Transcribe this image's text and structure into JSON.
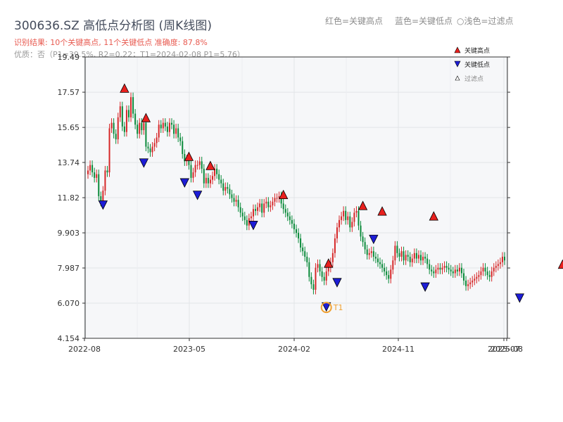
{
  "title": "300636.SZ 高低点分析图 (周K线图)",
  "legend_top": {
    "red": "红色=关键高点",
    "blue": "蓝色=关键低点",
    "light": "浅色=过滤点"
  },
  "result_line": "识别结果: 10个关键高点, 11个关键低点 准确度: 87.8%",
  "quality_line": "优质：否（P1=39.5%, R2=0.22；T1=2024-02-08 P1=5.76）",
  "colors": {
    "up": "#d62728",
    "down": "#0a8a3a",
    "high_marker": "#e8201e",
    "low_marker": "#1d1dd6",
    "t1": "#f0a030",
    "plot_bg": "#f6f7f9"
  },
  "chart_data": {
    "type": "candlestick",
    "y_ticks": [
      "4.154",
      "6.070",
      "7.987",
      "9.903",
      "11.82",
      "13.74",
      "15.65",
      "17.57",
      "19.49"
    ],
    "ylim": [
      4.154,
      19.49
    ],
    "x_ticks": [
      "2022-08",
      "2023-05",
      "2024-02",
      "2024-11",
      "2025-07",
      "2025-08"
    ],
    "close": [
      13.3,
      13.6,
      13.2,
      12.9,
      13.1,
      11.9,
      11.6,
      12.2,
      13.3,
      13.2,
      15.6,
      15.9,
      15.3,
      15.0,
      16.2,
      16.8,
      15.7,
      15.4,
      16.6,
      16.2,
      17.3,
      16.4,
      15.8,
      15.3,
      15.9,
      15.5,
      15.9,
      14.6,
      14.5,
      14.3,
      14.6,
      14.8,
      15.1,
      15.8,
      15.6,
      15.9,
      15.7,
      15.4,
      15.9,
      15.8,
      15.3,
      15.6,
      15.1,
      14.9,
      14.2,
      13.8,
      13.9,
      13.6,
      12.9,
      13.2,
      13.6,
      13.6,
      13.8,
      13.4,
      12.6,
      12.9,
      12.6,
      12.8,
      13.0,
      13.4,
      13.1,
      12.8,
      12.6,
      12.2,
      12.4,
      12.3,
      12.0,
      11.8,
      11.6,
      11.7,
      11.3,
      11.0,
      10.8,
      10.6,
      10.3,
      10.7,
      10.8,
      11.2,
      11.1,
      11.3,
      11.5,
      11.0,
      11.5,
      11.6,
      11.3,
      11.4,
      11.6,
      11.8,
      11.8,
      11.9,
      11.5,
      11.2,
      11.0,
      10.8,
      10.6,
      10.4,
      10.1,
      9.9,
      9.6,
      9.1,
      8.9,
      8.6,
      8.3,
      7.5,
      7.1,
      6.8,
      8.0,
      8.2,
      7.8,
      7.5,
      7.3,
      7.8,
      8.0,
      8.3,
      8.8,
      9.6,
      10.2,
      10.6,
      10.8,
      11.1,
      10.6,
      10.8,
      10.2,
      10.5,
      11.0,
      11.1,
      10.3,
      9.7,
      9.4,
      9.0,
      8.7,
      8.8,
      8.9,
      8.6,
      8.5,
      8.3,
      8.2,
      8.0,
      7.8,
      7.6,
      7.4,
      7.9,
      8.4,
      9.2,
      8.8,
      8.6,
      8.9,
      8.4,
      8.7,
      8.6,
      8.3,
      8.5,
      8.8,
      8.5,
      8.7,
      8.4,
      8.6,
      8.5,
      8.2,
      7.9,
      7.8,
      7.7,
      7.9,
      8.0,
      7.9,
      8.0,
      8.1,
      8.0,
      7.9,
      7.8,
      7.7,
      7.9,
      7.8,
      8.0,
      7.7,
      7.3,
      7.0,
      7.1,
      7.2,
      7.3,
      7.4,
      7.5,
      7.6,
      7.8,
      8.0,
      7.8,
      7.6,
      7.5,
      7.8,
      8.0,
      8.1,
      8.2,
      8.3,
      8.6,
      8.4
    ],
    "key_highs": [
      {
        "index": 17,
        "date": "2022-10",
        "value": 17.79
      },
      {
        "index": 27,
        "date": "2022-12",
        "value": 16.18
      },
      {
        "index": 47,
        "date": "2023-04",
        "value": 14.07
      },
      {
        "index": 57,
        "date": "2023-05",
        "value": 13.57
      },
      {
        "index": 91,
        "date": "2023-10",
        "value": 11.99
      },
      {
        "index": 112,
        "date": "2024-02",
        "value": 8.25
      },
      {
        "index": 128,
        "date": "2024-05",
        "value": 11.39
      },
      {
        "index": 137,
        "date": "2024-06",
        "value": 11.09
      },
      {
        "index": 161,
        "date": "2024-09",
        "value": 10.82
      },
      {
        "index": 221,
        "date": "2025-06",
        "value": 8.19
      }
    ],
    "key_lows": [
      {
        "index": 7,
        "date": "2022-08",
        "value": 11.42
      },
      {
        "index": 26,
        "date": "2022-11",
        "value": 13.71
      },
      {
        "index": 45,
        "date": "2023-03",
        "value": 12.63
      },
      {
        "index": 51,
        "date": "2023-04",
        "value": 11.95
      },
      {
        "index": 77,
        "date": "2023-07",
        "value": 10.31
      },
      {
        "index": 111,
        "date": "2024-02",
        "value": 5.87
      },
      {
        "index": 116,
        "date": "2024-03",
        "value": 7.19
      },
      {
        "index": 133,
        "date": "2024-05",
        "value": 9.55
      },
      {
        "index": 157,
        "date": "2024-08",
        "value": 6.95
      },
      {
        "index": 201,
        "date": "2025-03",
        "value": 6.35
      },
      {
        "index": 226,
        "date": "2025-07",
        "value": 7.22
      }
    ],
    "t1": {
      "label": "T1",
      "date": "2024-02-08",
      "value": 5.76
    },
    "legend": {
      "high": "关键高点",
      "low": "关键低点",
      "filtered": "过滤点"
    }
  }
}
